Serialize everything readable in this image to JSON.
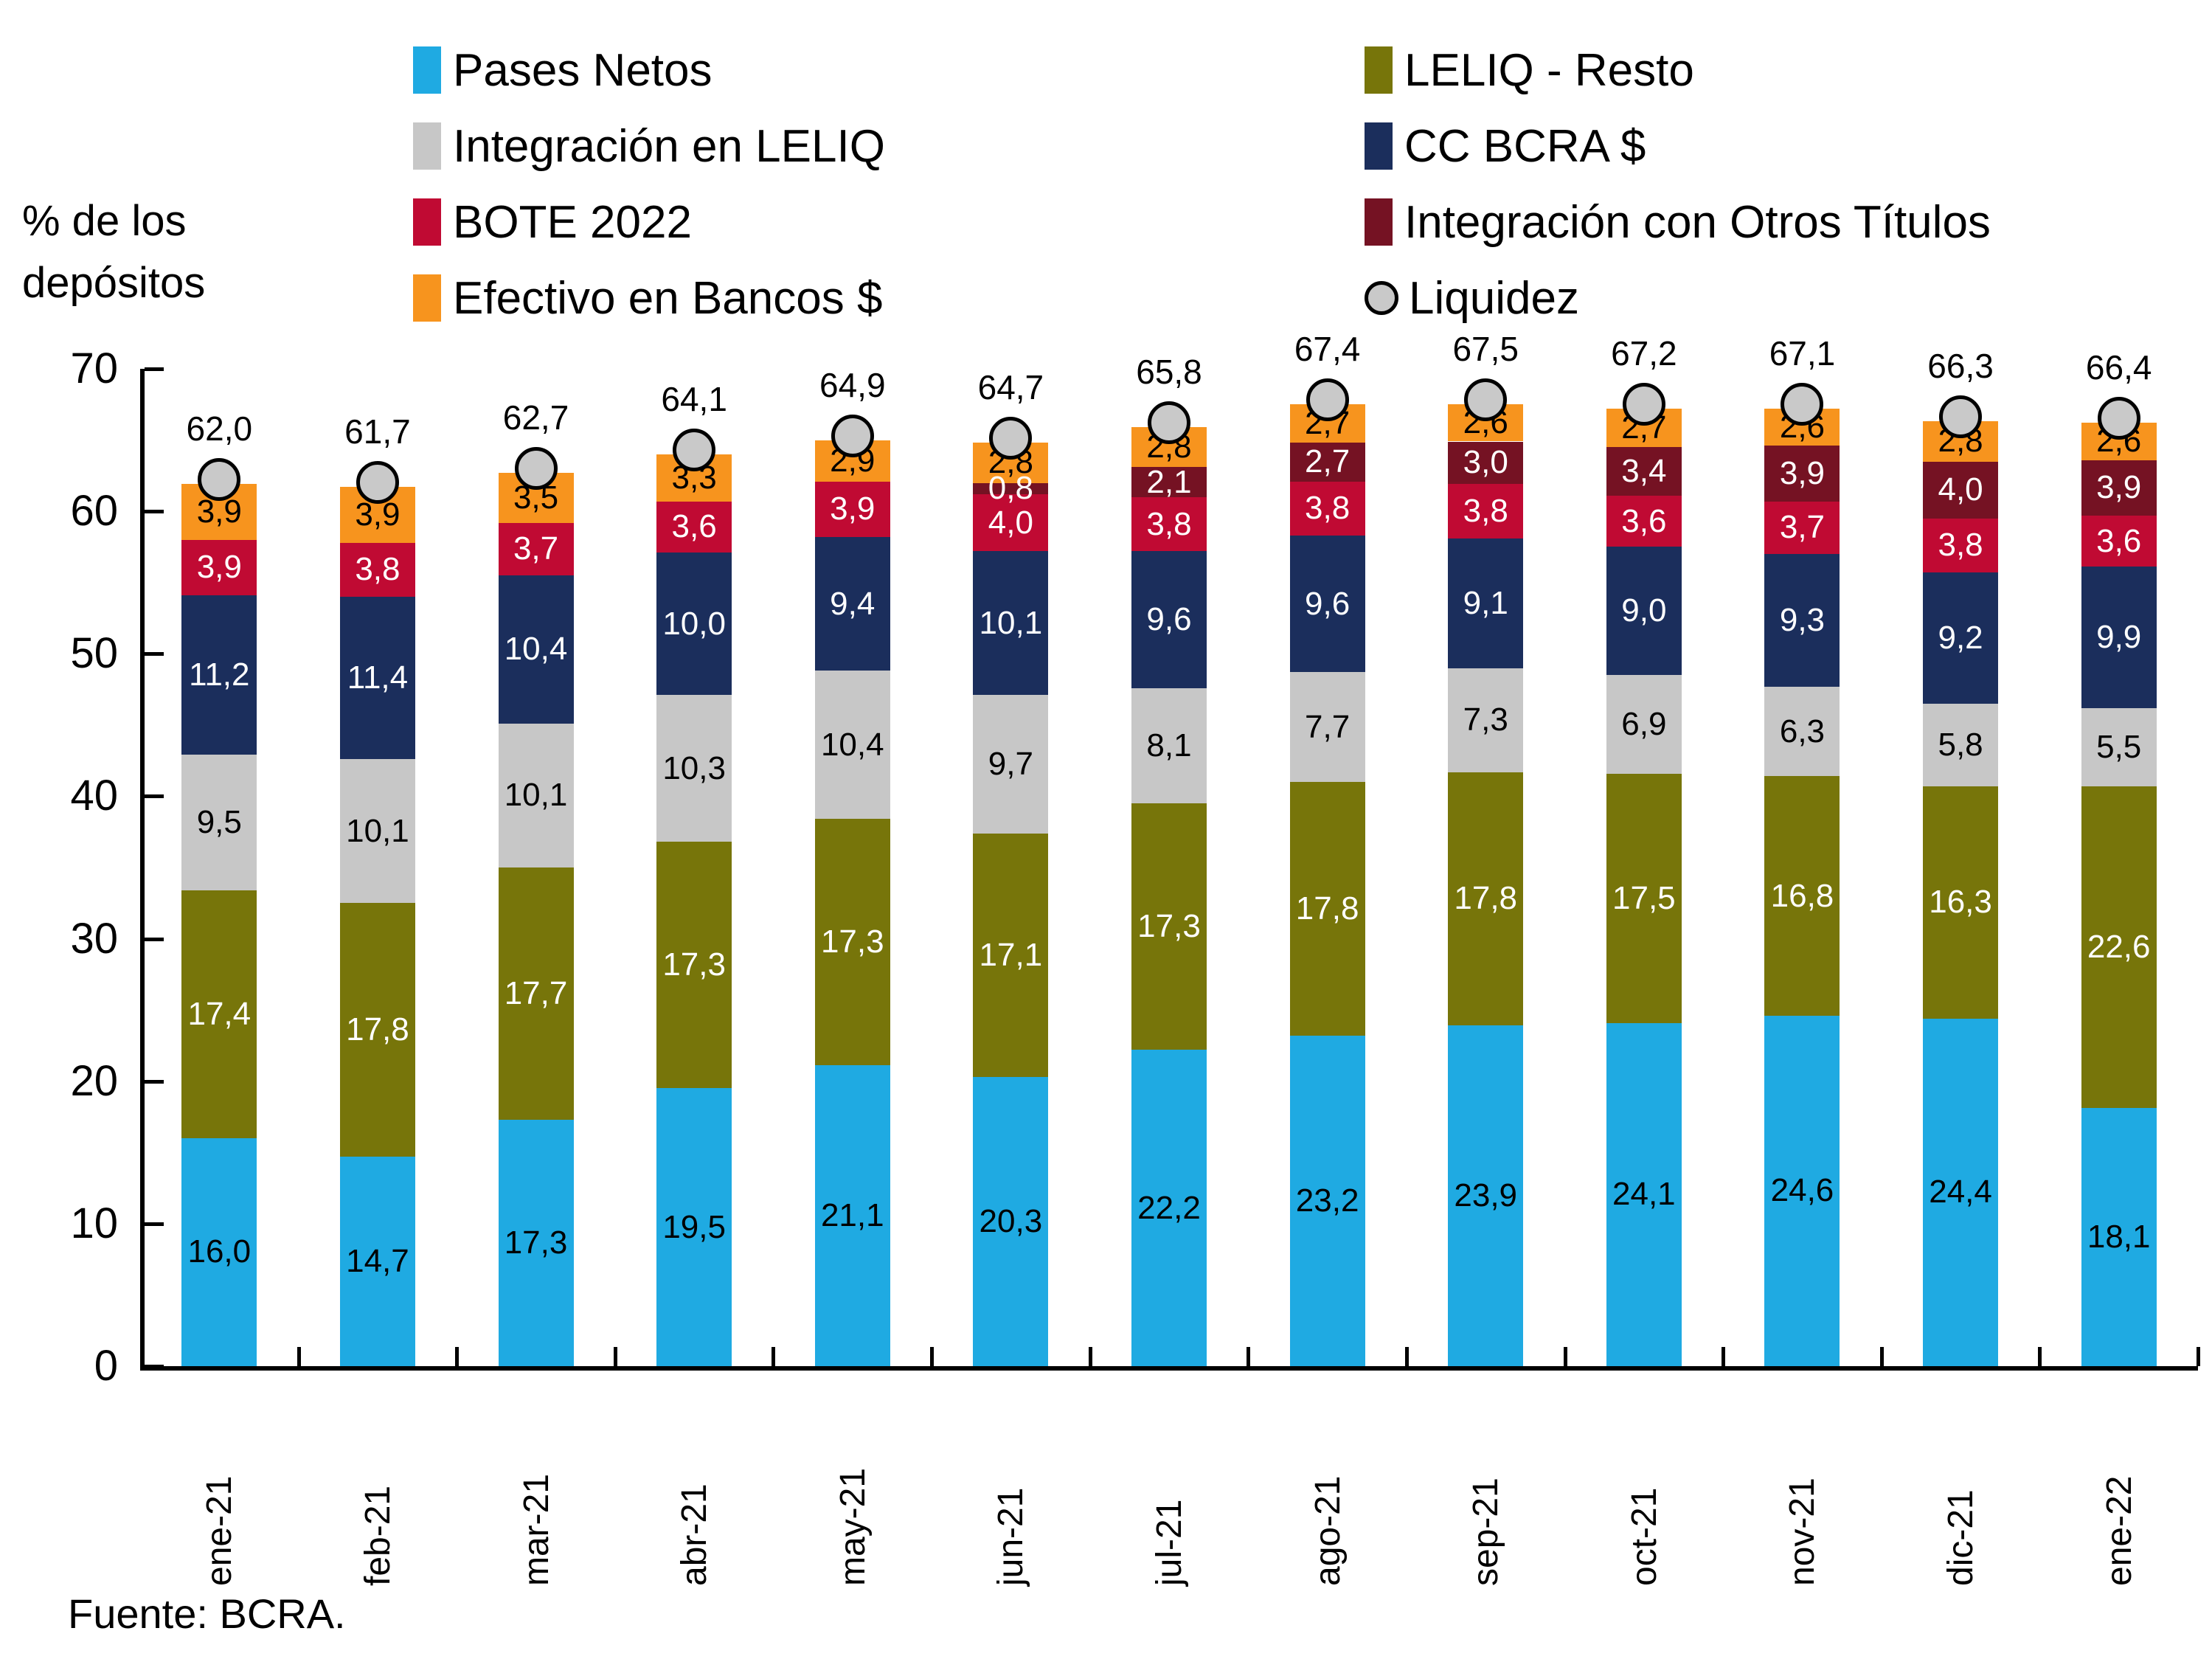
{
  "ylabel": {
    "text": "% de los depósitos"
  },
  "source": {
    "text": "Fuente: BCRA."
  },
  "legend": {
    "items": [
      {
        "label": "Pases Netos",
        "marker": "rect",
        "color": "#1FAAE2",
        "col": 0,
        "row": 0
      },
      {
        "label": "LELIQ - Resto",
        "marker": "rect",
        "color": "#77750A",
        "col": 1,
        "row": 0
      },
      {
        "label": "Integración en LELIQ",
        "marker": "rect",
        "color": "#C7C7C7",
        "col": 0,
        "row": 1
      },
      {
        "label": "CC BCRA $",
        "marker": "rect",
        "color": "#1B2E5C",
        "col": 1,
        "row": 1
      },
      {
        "label": "BOTE 2022",
        "marker": "rect",
        "color": "#C00A33",
        "col": 0,
        "row": 2
      },
      {
        "label": "Integración con Otros Títulos",
        "marker": "rect",
        "color": "#751223",
        "col": 1,
        "row": 2
      },
      {
        "label": "Efectivo en Bancos $",
        "marker": "rect",
        "color": "#F7941E",
        "col": 0,
        "row": 3
      },
      {
        "label": "Liquidez",
        "marker": "circle",
        "color": "#C9C9C9",
        "col": 1,
        "row": 3
      }
    ]
  },
  "chart_data": {
    "type": "bar",
    "stacked": true,
    "title": "",
    "ylabel": "% de los depósitos",
    "ylim": [
      0,
      70
    ],
    "yticks": [
      0,
      10,
      20,
      30,
      40,
      50,
      60,
      70
    ],
    "decimal": "comma",
    "legend_position": "top",
    "grid": false,
    "categories": [
      "ene-21",
      "feb-21",
      "mar-21",
      "abr-21",
      "may-21",
      "jun-21",
      "jul-21",
      "ago-21",
      "sep-21",
      "oct-21",
      "nov-21",
      "dic-21",
      "ene-22"
    ],
    "series": [
      {
        "name": "Pases Netos",
        "color": "#1FAAE2",
        "label_color": "#000000",
        "values": [
          16.0,
          14.7,
          17.3,
          19.5,
          21.1,
          20.3,
          22.2,
          23.2,
          23.9,
          24.1,
          24.6,
          24.4,
          18.1
        ]
      },
      {
        "name": "LELIQ - Resto",
        "color": "#77750A",
        "label_color": "#FFFFFF",
        "values": [
          17.4,
          17.8,
          17.7,
          17.3,
          17.3,
          17.1,
          17.3,
          17.8,
          17.8,
          17.5,
          16.8,
          16.3,
          22.6
        ]
      },
      {
        "name": "Integración en LELIQ",
        "color": "#C7C7C7",
        "label_color": "#000000",
        "values": [
          9.5,
          10.1,
          10.1,
          10.3,
          10.4,
          9.7,
          8.1,
          7.7,
          7.3,
          6.9,
          6.3,
          5.8,
          5.5
        ]
      },
      {
        "name": "CC BCRA $",
        "color": "#1B2E5C",
        "label_color": "#FFFFFF",
        "values": [
          11.2,
          11.4,
          10.4,
          10.0,
          9.4,
          10.1,
          9.6,
          9.6,
          9.1,
          9.0,
          9.3,
          9.2,
          9.9
        ]
      },
      {
        "name": "BOTE 2022",
        "color": "#C00A33",
        "label_color": "#FFFFFF",
        "values": [
          3.9,
          3.8,
          3.7,
          3.6,
          3.9,
          4.0,
          3.8,
          3.8,
          3.8,
          3.6,
          3.7,
          3.8,
          3.6
        ]
      },
      {
        "name": "Integración con Otros Títulos",
        "color": "#751223",
        "label_color": "#FFFFFF",
        "values": [
          0,
          0,
          0,
          0,
          0,
          0.8,
          2.1,
          2.7,
          3.0,
          3.4,
          3.9,
          4.0,
          3.9
        ]
      },
      {
        "name": "Efectivo en Bancos $",
        "color": "#F7941E",
        "label_color": "#000000",
        "values": [
          3.9,
          3.9,
          3.5,
          3.3,
          2.9,
          2.8,
          2.8,
          2.7,
          2.6,
          2.7,
          2.6,
          2.8,
          2.6
        ]
      }
    ],
    "marker_series": {
      "name": "Liquidez",
      "color": "#C9C9C9",
      "edge_color": "#000000",
      "values": [
        62.0,
        61.7,
        62.7,
        64.1,
        64.9,
        64.7,
        65.8,
        67.4,
        67.5,
        67.2,
        67.1,
        66.3,
        66.4
      ]
    }
  }
}
